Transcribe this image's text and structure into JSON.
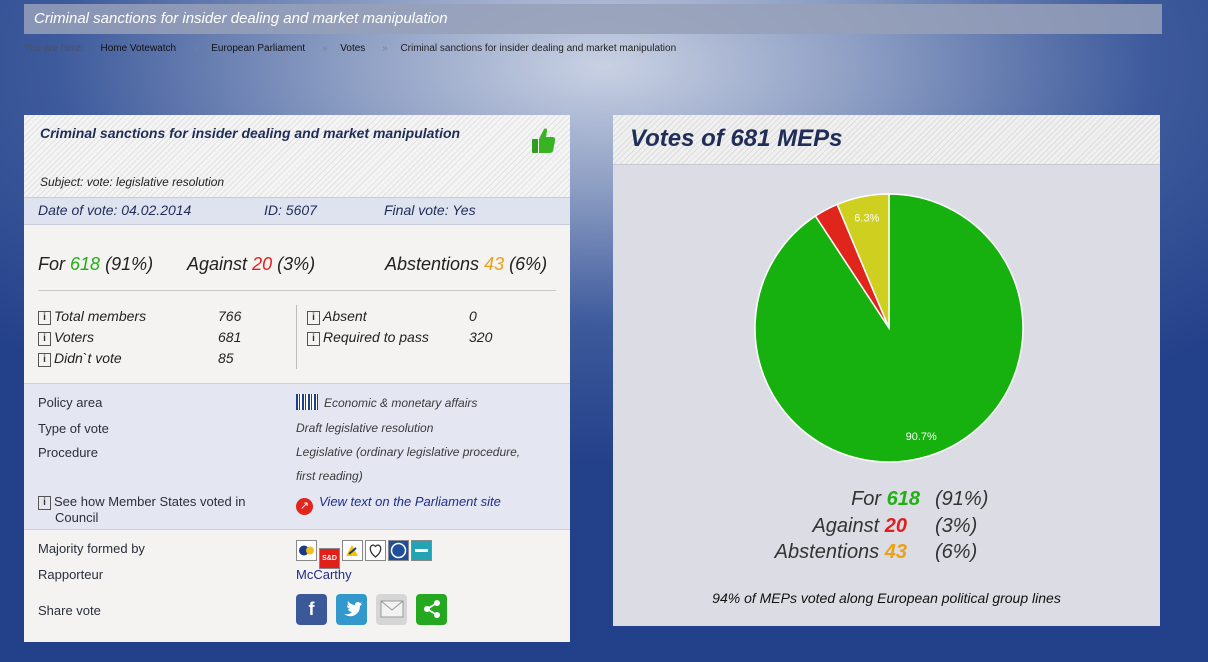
{
  "page_title": "Criminal sanctions for insider dealing and market manipulation",
  "breadcrumb": {
    "label": "You are here:",
    "items": [
      "Home Votewatch",
      "European Parliament",
      "Votes"
    ],
    "separator": "»",
    "current": "Criminal sanctions for insider dealing and market manipulation"
  },
  "vote": {
    "title": "Criminal sanctions for insider dealing and market manipulation",
    "subject": "Subject: vote: legislative resolution",
    "date": "Date of vote: 04.02.2014",
    "id": "ID: 5607",
    "final": "Final vote: Yes",
    "for_label": "For",
    "for_count": "618",
    "for_pct": "(91%)",
    "against_label": "Against",
    "against_count": "20",
    "against_pct": "(3%)",
    "abst_label": "Abstentions",
    "abst_count": "43",
    "abst_pct": "(6%)",
    "stats_left": [
      {
        "label": "Total members",
        "value": "766"
      },
      {
        "label": "Voters",
        "value": "681"
      },
      {
        "label": "Didn`t vote",
        "value": "85"
      }
    ],
    "stats_right": [
      {
        "label": "Absent",
        "value": "0"
      },
      {
        "label": "Required to pass",
        "value": "320"
      }
    ],
    "info_glyph": "i"
  },
  "policy": {
    "policy_area_label": "Policy area",
    "policy_area_value": "Economic & monetary affairs",
    "type_label": "Type of vote",
    "type_value": "Draft legislative resolution",
    "procedure_label": "Procedure",
    "procedure_line1": "Legislative (ordinary legislative procedure,",
    "procedure_line2": "first reading)",
    "member_states_line1": "See how Member States voted in",
    "member_states_line2": "Council",
    "view_text_link": "View text on the Parliament site",
    "arrow_glyph": "↗"
  },
  "lower": {
    "majority_label": "Majority formed by",
    "group_logos": [
      "EPP",
      "S&D",
      "ALDE",
      "GREENS",
      "ECR",
      "GUE"
    ],
    "sd_text": "S&D",
    "rapporteur_label": "Rapporteur",
    "rapporteur_value": "McCarthy",
    "share_label": "Share vote",
    "share_buttons": [
      {
        "name": "facebook-icon",
        "glyph": "f",
        "color": "#3b5998"
      },
      {
        "name": "twitter-icon",
        "glyph": "🐦",
        "color": "#3399cc"
      },
      {
        "name": "email-icon",
        "glyph": "✉",
        "color": "#d6d6d6"
      },
      {
        "name": "share-icon",
        "glyph": "⋖",
        "color": "#23a81f"
      }
    ]
  },
  "chart_panel": {
    "title": "Votes of 681 MEPs",
    "footer": "94% of MEPs voted along European political group lines"
  },
  "chart_data": {
    "type": "pie",
    "slices": [
      {
        "label": "For",
        "value": 618,
        "percent": 90.7,
        "color": "#16b10e",
        "label_text": "90.7%"
      },
      {
        "label": "Against",
        "value": 20,
        "percent": 2.9,
        "color": "#e0251d",
        "label_text": ""
      },
      {
        "label": "Abstentions",
        "value": 43,
        "percent": 6.3,
        "color": "#cfcf20",
        "label_text": "6.3%"
      }
    ],
    "legend": [
      {
        "label": "For",
        "count": "618",
        "pct": "(91%)"
      },
      {
        "label": "Against",
        "count": "20",
        "pct": "(3%)"
      },
      {
        "label": "Abstentions",
        "count": "43",
        "pct": "(6%)"
      }
    ]
  },
  "colors": {
    "for": "#22b014",
    "against": "#e02020",
    "abstentions": "#e9a116",
    "title_navy": "#1f2d57"
  }
}
